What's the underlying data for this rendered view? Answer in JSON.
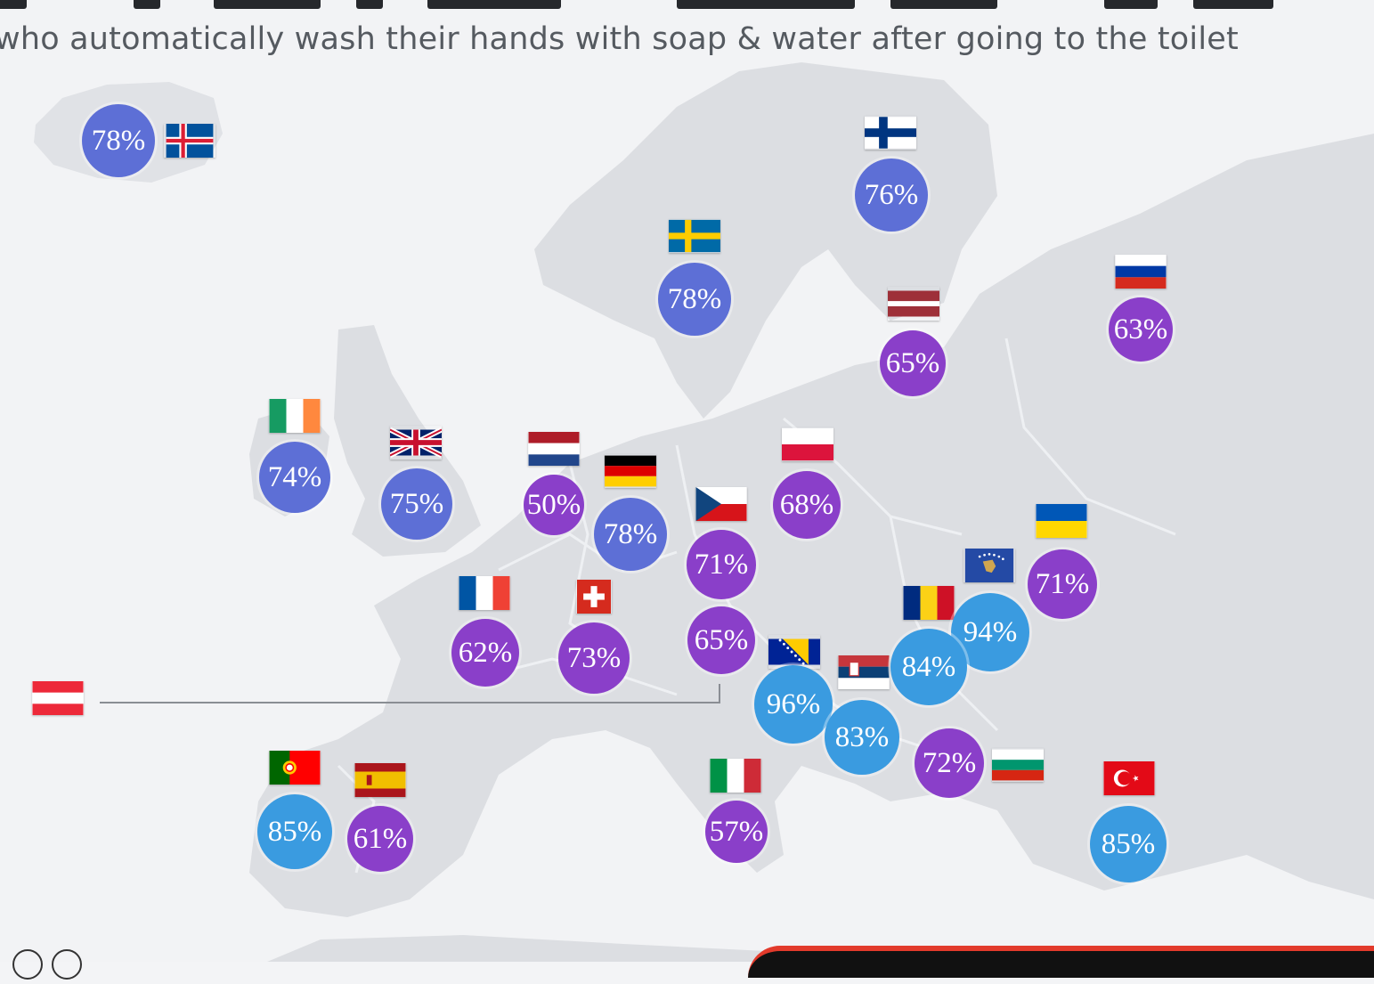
{
  "subtitle": "who automatically wash their hands with soap & water after going to the toilet",
  "colors": {
    "high": "#3a9be0",
    "mid": "#5d6fd6",
    "low": "#8a3fc9"
  },
  "countries": [
    {
      "flag": "iceland",
      "value": "78%",
      "tone": "mid"
    },
    {
      "flag": "finland",
      "value": "76%",
      "tone": "mid"
    },
    {
      "flag": "sweden",
      "value": "78%",
      "tone": "mid"
    },
    {
      "flag": "russia",
      "value": "63%",
      "tone": "low"
    },
    {
      "flag": "latvia",
      "value": "65%",
      "tone": "low"
    },
    {
      "flag": "ireland",
      "value": "74%",
      "tone": "mid"
    },
    {
      "flag": "united-kingdom",
      "value": "75%",
      "tone": "mid"
    },
    {
      "flag": "netherlands",
      "value": "50%",
      "tone": "low"
    },
    {
      "flag": "germany",
      "value": "78%",
      "tone": "mid"
    },
    {
      "flag": "czech-republic",
      "value": "71%",
      "tone": "low"
    },
    {
      "flag": "poland",
      "value": "68%",
      "tone": "low"
    },
    {
      "flag": "ukraine",
      "value": "71%",
      "tone": "low"
    },
    {
      "flag": "kosovo",
      "value": "94%",
      "tone": "high"
    },
    {
      "flag": "romania",
      "value": "84%",
      "tone": "high"
    },
    {
      "flag": "france",
      "value": "62%",
      "tone": "low"
    },
    {
      "flag": "switzerland",
      "value": "73%",
      "tone": "low"
    },
    {
      "flag": "austria",
      "value": "65%",
      "tone": "low"
    },
    {
      "flag": "bosnia-herzegovina",
      "value": "96%",
      "tone": "high"
    },
    {
      "flag": "serbia",
      "value": "83%",
      "tone": "high"
    },
    {
      "flag": "bulgaria",
      "value": "72%",
      "tone": "low"
    },
    {
      "flag": "portugal",
      "value": "85%",
      "tone": "high"
    },
    {
      "flag": "spain",
      "value": "61%",
      "tone": "low"
    },
    {
      "flag": "italy",
      "value": "57%",
      "tone": "low"
    },
    {
      "flag": "turkey",
      "value": "85%",
      "tone": "high"
    }
  ]
}
